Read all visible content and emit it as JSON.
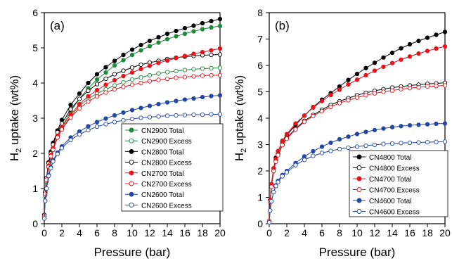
{
  "chart_data": [
    {
      "type": "line",
      "panel_label": "(a)",
      "xlabel": "Pressure (bar)",
      "ylabel_main": "H",
      "ylabel_sub": "2",
      "ylabel_rest": " uptake (wt%)",
      "xlim": [
        0,
        20
      ],
      "ylim": [
        0,
        6
      ],
      "xticks": [
        0,
        2,
        4,
        6,
        8,
        10,
        12,
        14,
        16,
        18,
        20
      ],
      "yticks": [
        0,
        1,
        2,
        3,
        4,
        5,
        6
      ],
      "grid": false,
      "legend_position": "bottom-right",
      "x": [
        0,
        0.1,
        0.25,
        0.5,
        0.75,
        1,
        1.5,
        2,
        3,
        4,
        5,
        6,
        7,
        8,
        9,
        10,
        11,
        12,
        13,
        14,
        15,
        16,
        17,
        18,
        19,
        20
      ],
      "series": [
        {
          "name": "CN2900 Total",
          "color": "#1e8a3c",
          "filled": true,
          "values": [
            0.2,
            0.8,
            1.2,
            1.65,
            1.95,
            2.15,
            2.5,
            2.75,
            3.2,
            3.55,
            3.85,
            4.1,
            4.3,
            4.5,
            4.65,
            4.8,
            4.93,
            5.05,
            5.15,
            5.25,
            5.33,
            5.4,
            5.47,
            5.53,
            5.58,
            5.62
          ]
        },
        {
          "name": "CN2900 Excess",
          "color": "#1e8a3c",
          "filled": false,
          "values": [
            0.2,
            0.8,
            1.2,
            1.6,
            1.9,
            2.1,
            2.45,
            2.7,
            3.05,
            3.35,
            3.55,
            3.7,
            3.82,
            3.93,
            4.02,
            4.1,
            4.16,
            4.22,
            4.27,
            4.31,
            4.34,
            4.37,
            4.39,
            4.41,
            4.42,
            4.43
          ]
        },
        {
          "name": "CN2800 Total",
          "color": "#000000",
          "filled": true,
          "values": [
            0.25,
            0.9,
            1.3,
            1.75,
            2.05,
            2.3,
            2.65,
            2.95,
            3.38,
            3.7,
            4.0,
            4.25,
            4.45,
            4.63,
            4.8,
            4.95,
            5.08,
            5.2,
            5.3,
            5.4,
            5.48,
            5.56,
            5.63,
            5.7,
            5.76,
            5.82
          ]
        },
        {
          "name": "CN2800 Excess",
          "color": "#000000",
          "filled": false,
          "values": [
            0.25,
            0.9,
            1.3,
            1.72,
            2.0,
            2.25,
            2.6,
            2.85,
            3.25,
            3.55,
            3.78,
            3.97,
            4.12,
            4.25,
            4.35,
            4.44,
            4.52,
            4.58,
            4.63,
            4.68,
            4.72,
            4.75,
            4.77,
            4.79,
            4.8,
            4.81
          ]
        },
        {
          "name": "CN2700 Total",
          "color": "#e8141c",
          "filled": true,
          "values": [
            0.2,
            0.85,
            1.25,
            1.65,
            1.95,
            2.15,
            2.5,
            2.75,
            3.1,
            3.4,
            3.62,
            3.8,
            3.95,
            4.08,
            4.2,
            4.3,
            4.4,
            4.49,
            4.57,
            4.64,
            4.71,
            4.77,
            4.83,
            4.88,
            4.93,
            4.98
          ]
        },
        {
          "name": "CN2700 Excess",
          "color": "#e8141c",
          "filled": false,
          "values": [
            0.2,
            0.85,
            1.25,
            1.62,
            1.92,
            2.1,
            2.45,
            2.68,
            3.02,
            3.28,
            3.47,
            3.62,
            3.73,
            3.82,
            3.89,
            3.95,
            4.0,
            4.05,
            4.09,
            4.12,
            4.15,
            4.17,
            4.19,
            4.21,
            4.22,
            4.22
          ]
        },
        {
          "name": "CN2600 Total",
          "color": "#2447a6",
          "filled": true,
          "values": [
            0.15,
            0.65,
            1.0,
            1.38,
            1.6,
            1.8,
            2.02,
            2.2,
            2.45,
            2.62,
            2.77,
            2.89,
            2.99,
            3.08,
            3.16,
            3.23,
            3.29,
            3.35,
            3.4,
            3.45,
            3.49,
            3.53,
            3.56,
            3.6,
            3.63,
            3.65
          ]
        },
        {
          "name": "CN2600 Excess",
          "color": "#2447a6",
          "filled": false,
          "values": [
            0.15,
            0.65,
            1.0,
            1.36,
            1.58,
            1.77,
            1.98,
            2.15,
            2.38,
            2.54,
            2.66,
            2.76,
            2.83,
            2.89,
            2.94,
            2.98,
            3.01,
            3.03,
            3.05,
            3.07,
            3.08,
            3.09,
            3.1,
            3.1,
            3.11,
            3.11
          ]
        }
      ]
    },
    {
      "type": "line",
      "panel_label": "(b)",
      "xlabel": "Pressure (bar)",
      "ylabel_main": "H",
      "ylabel_sub": "2",
      "ylabel_rest": " uptake (wt%)",
      "xlim": [
        0,
        20
      ],
      "ylim": [
        0,
        8
      ],
      "xticks": [
        0,
        2,
        4,
        6,
        8,
        10,
        12,
        14,
        16,
        18,
        20
      ],
      "yticks": [
        0,
        1,
        2,
        3,
        4,
        5,
        6,
        7,
        8
      ],
      "grid": false,
      "legend_position": "bottom-right",
      "x": [
        0,
        0.1,
        0.25,
        0.5,
        0.75,
        1,
        1.5,
        2,
        3,
        4,
        5,
        6,
        7,
        8,
        9,
        10,
        11,
        12,
        13,
        14,
        15,
        16,
        17,
        18,
        19,
        20
      ],
      "series": [
        {
          "name": "CN4800 Total",
          "color": "#000000",
          "filled": true,
          "values": [
            0.1,
            0.9,
            1.5,
            2.1,
            2.5,
            2.75,
            3.1,
            3.35,
            3.75,
            4.1,
            4.42,
            4.7,
            4.95,
            5.2,
            5.45,
            5.68,
            5.9,
            6.1,
            6.3,
            6.48,
            6.65,
            6.8,
            6.93,
            7.05,
            7.16,
            7.27
          ]
        },
        {
          "name": "CN4800 Excess",
          "color": "#000000",
          "filled": false,
          "values": [
            0.1,
            0.85,
            1.4,
            2.0,
            2.4,
            2.65,
            3.0,
            3.25,
            3.6,
            3.9,
            4.12,
            4.32,
            4.5,
            4.64,
            4.76,
            4.87,
            4.96,
            5.04,
            5.1,
            5.16,
            5.2,
            5.24,
            5.27,
            5.3,
            5.32,
            5.34
          ]
        },
        {
          "name": "CN4700 Total",
          "color": "#e8141c",
          "filled": true,
          "values": [
            0.1,
            0.9,
            1.5,
            2.1,
            2.45,
            2.75,
            3.15,
            3.4,
            3.8,
            4.1,
            4.4,
            4.65,
            4.88,
            5.08,
            5.28,
            5.46,
            5.63,
            5.8,
            5.95,
            6.09,
            6.22,
            6.34,
            6.45,
            6.55,
            6.64,
            6.72
          ]
        },
        {
          "name": "CN4700 Excess",
          "color": "#e8141c",
          "filled": false,
          "values": [
            0.1,
            0.85,
            1.4,
            2.0,
            2.35,
            2.6,
            2.98,
            3.22,
            3.58,
            3.86,
            4.08,
            4.27,
            4.43,
            4.57,
            4.68,
            4.78,
            4.87,
            4.94,
            5.0,
            5.05,
            5.1,
            5.14,
            5.17,
            5.2,
            5.22,
            5.24
          ]
        },
        {
          "name": "CN4600 Total",
          "color": "#2447a6",
          "filled": true,
          "values": [
            0.05,
            0.5,
            0.85,
            1.2,
            1.45,
            1.62,
            1.85,
            2.0,
            2.3,
            2.55,
            2.75,
            2.92,
            3.07,
            3.2,
            3.3,
            3.4,
            3.48,
            3.55,
            3.61,
            3.66,
            3.7,
            3.73,
            3.75,
            3.77,
            3.79,
            3.8
          ]
        },
        {
          "name": "CN4600 Excess",
          "color": "#2447a6",
          "filled": false,
          "values": [
            0.05,
            0.5,
            0.85,
            1.2,
            1.43,
            1.58,
            1.8,
            1.95,
            2.22,
            2.42,
            2.57,
            2.68,
            2.76,
            2.83,
            2.88,
            2.92,
            2.96,
            2.99,
            3.02,
            3.04,
            3.06,
            3.07,
            3.08,
            3.09,
            3.1,
            3.11
          ]
        }
      ]
    }
  ]
}
